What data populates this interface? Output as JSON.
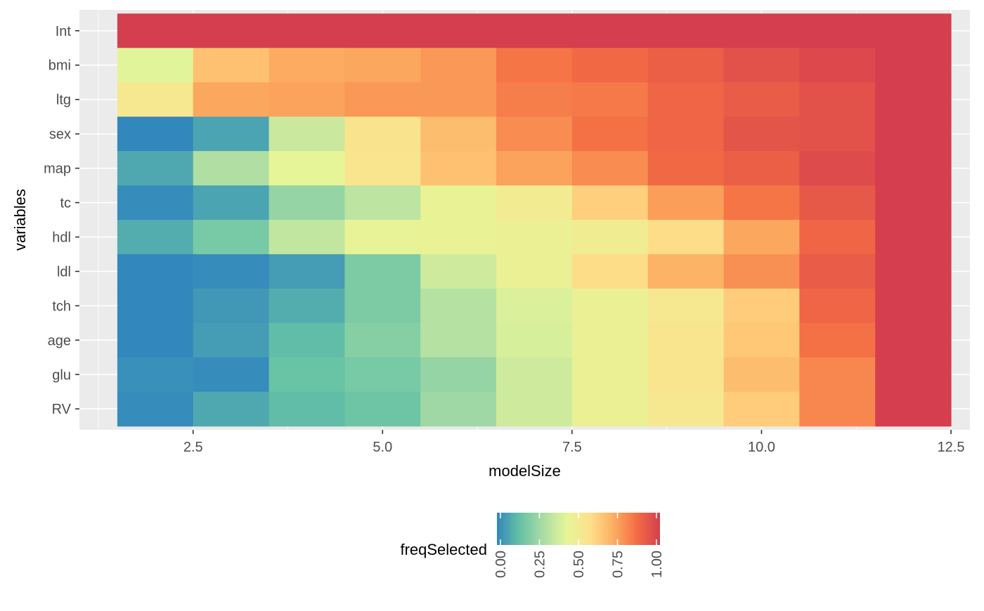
{
  "chart_data": {
    "type": "heatmap",
    "x_title": "modelSize",
    "y_title": "variables",
    "x_range": [
      1.0,
      12.75
    ],
    "x_ticks": [
      2.5,
      5.0,
      7.5,
      10.0,
      12.5
    ],
    "x_tick_labels": [
      "2.5",
      "5.0",
      "7.5",
      "10.0",
      "12.5"
    ],
    "x_cells": [
      2,
      3,
      4,
      5,
      6,
      7,
      8,
      9,
      10,
      11,
      12
    ],
    "y_categories": [
      "Int",
      "bmi",
      "ltg",
      "sex",
      "map",
      "tc",
      "hdl",
      "ldl",
      "tch",
      "age",
      "glu",
      "RV"
    ],
    "values": [
      [
        1.0,
        1.0,
        1.0,
        1.0,
        1.0,
        1.0,
        1.0,
        1.0,
        1.0,
        1.0,
        1.0
      ],
      [
        0.42,
        0.66,
        0.72,
        0.73,
        0.76,
        0.84,
        0.87,
        0.9,
        0.94,
        0.97,
        1.0
      ],
      [
        0.52,
        0.73,
        0.74,
        0.76,
        0.76,
        0.82,
        0.83,
        0.88,
        0.91,
        0.94,
        1.0
      ],
      [
        0.0,
        0.07,
        0.36,
        0.55,
        0.67,
        0.79,
        0.85,
        0.88,
        0.93,
        0.94,
        1.0
      ],
      [
        0.08,
        0.3,
        0.43,
        0.54,
        0.66,
        0.74,
        0.79,
        0.87,
        0.9,
        0.96,
        1.0
      ],
      [
        0.01,
        0.07,
        0.24,
        0.33,
        0.45,
        0.5,
        0.62,
        0.75,
        0.84,
        0.92,
        1.0
      ],
      [
        0.09,
        0.18,
        0.34,
        0.44,
        0.45,
        0.46,
        0.49,
        0.58,
        0.73,
        0.88,
        1.0
      ],
      [
        0.0,
        0.01,
        0.05,
        0.19,
        0.37,
        0.46,
        0.58,
        0.7,
        0.78,
        0.91,
        1.0
      ],
      [
        0.0,
        0.04,
        0.09,
        0.19,
        0.31,
        0.4,
        0.46,
        0.52,
        0.63,
        0.88,
        1.0
      ],
      [
        0.0,
        0.05,
        0.13,
        0.21,
        0.31,
        0.39,
        0.46,
        0.54,
        0.64,
        0.85,
        1.0
      ],
      [
        0.02,
        0.01,
        0.15,
        0.18,
        0.24,
        0.37,
        0.46,
        0.54,
        0.67,
        0.8,
        1.0
      ],
      [
        0.01,
        0.08,
        0.13,
        0.16,
        0.26,
        0.37,
        0.46,
        0.52,
        0.63,
        0.8,
        1.0
      ]
    ],
    "legend": {
      "title": "freqSelected",
      "position": "bottom",
      "ticks": [
        0.0,
        0.25,
        0.5,
        0.75,
        1.0
      ],
      "tick_labels": [
        "0.00",
        "0.25",
        "0.50",
        "0.75",
        "1.00"
      ]
    },
    "colors": {
      "panel_bg": "#ebebeb",
      "grid_major": "#ffffff",
      "palette": [
        "#3288bd",
        "#66c2a5",
        "#abdda4",
        "#e6f598",
        "#fee08b",
        "#fdae61",
        "#f46d43",
        "#d53e4f"
      ]
    },
    "grid": true
  }
}
